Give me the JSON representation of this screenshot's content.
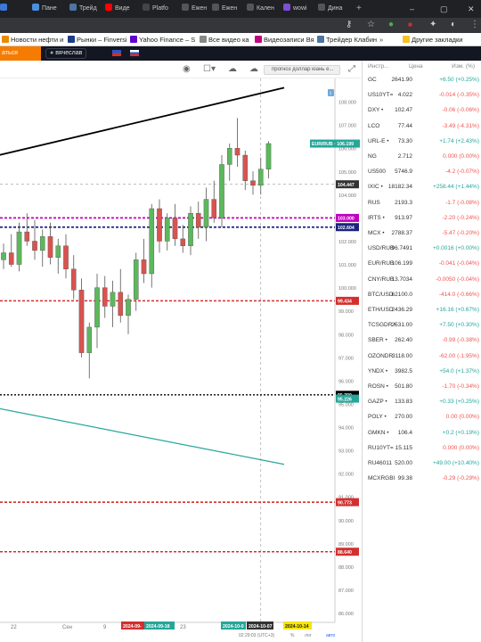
{
  "browser": {
    "tabs": [
      {
        "label": "Пане",
        "color": "#4a90e2"
      },
      {
        "label": "Трейд",
        "color": "#4c75a3"
      },
      {
        "label": "Виде",
        "color": "#ff0000"
      },
      {
        "label": "Platfo",
        "color": "#444444"
      },
      {
        "label": "Ежен",
        "color": "#555555"
      },
      {
        "label": "Ежен",
        "color": "#555555"
      },
      {
        "label": "Кален",
        "color": "#555555"
      },
      {
        "label": "wowi",
        "color": "#7b4fd6"
      },
      {
        "label": "Дина",
        "color": "#555555"
      }
    ],
    "bookmarks": [
      {
        "label": "Новости нефти и",
        "color": "#e88b00"
      },
      {
        "label": "Рынки – Finversi",
        "color": "#1f3c88"
      },
      {
        "label": "Yahoo Finance – S",
        "color": "#6001d2"
      },
      {
        "label": "Все видео ка",
        "color": "#888888"
      },
      {
        "label": "Видеозаписи Вя",
        "color": "#c00080"
      },
      {
        "label": "Трейдер Клабин",
        "color": "#4c75a3"
      }
    ],
    "other_bookmarks": "Другие закладки"
  },
  "app": {
    "orange_label": "аться",
    "user": "вячеслав"
  },
  "toolbar": {
    "compare_placeholder": "прогноз доллар юань е..."
  },
  "chart": {
    "price_labels": [
      "108.000",
      "107.000",
      "106.000",
      "105.000",
      "104.000",
      "103.000",
      "102.000",
      "101.000",
      "100.000",
      "99.000",
      "98.000",
      "97.000",
      "96.000",
      "95.000",
      "94.000",
      "93.000",
      "92.000",
      "91.000",
      "90.000",
      "89.000",
      "88.000",
      "87.000",
      "86.000"
    ],
    "level_tags": [
      {
        "text": "EUR/RUB · 106.199",
        "price": 106.199,
        "color": "#26a69a"
      },
      {
        "text": "104.447",
        "price": 104.447,
        "color": "#333333"
      },
      {
        "text": "103.000",
        "price": 103.0,
        "color": "#c000c0"
      },
      {
        "text": "102.604",
        "price": 102.604,
        "color": "#1a237e"
      },
      {
        "text": "99.434",
        "price": 99.434,
        "color": "#d32f2f"
      },
      {
        "text": "95.390",
        "price": 95.39,
        "color": "#000000"
      },
      {
        "text": "95.226",
        "price": 95.226,
        "color": "#26a69a"
      },
      {
        "text": "90.773",
        "price": 90.773,
        "color": "#d32f2f"
      },
      {
        "text": "88.640",
        "price": 88.64,
        "color": "#d32f2f"
      }
    ],
    "x_labels": [
      "22",
      "Сен",
      "9",
      "23"
    ],
    "date_tags": [
      {
        "text": "2024-09-",
        "color": "#d32f2f"
      },
      {
        "text": "2024-09-18",
        "color": "#26a69a"
      },
      {
        "text": "2024-10-0",
        "color": "#26a69a"
      },
      {
        "text": "2024-10-07",
        "color": "#333333"
      },
      {
        "text": "2024-10-14",
        "color": "#f5e600"
      }
    ],
    "status_time": "02:29:03 (UTC+3)",
    "status_pct": "%",
    "status_log": "лог",
    "status_auto": "авто"
  },
  "watchlist": {
    "headers": {
      "symbol": "Инстр...",
      "price": "Цена",
      "change": "Изм. (%)"
    },
    "rows": [
      {
        "sym": "GC",
        "price": "2641.90",
        "chg": "+6.50 (+0.25%)",
        "dir": "up"
      },
      {
        "sym": "US10YT=",
        "price": "4.022",
        "chg": "-0.014 (-0.35%)",
        "dir": "down"
      },
      {
        "sym": "DXY •",
        "price": "102.47",
        "chg": "-0.06 (-0.06%)",
        "dir": "down"
      },
      {
        "sym": "LCO",
        "price": "77.44",
        "chg": "-3.49 (-4.31%)",
        "dir": "down"
      },
      {
        "sym": "URL-E •",
        "price": "73.30",
        "chg": "+1.74 (+2.43%)",
        "dir": "up"
      },
      {
        "sym": "NG",
        "price": "2.712",
        "chg": "0.000 (0.00%)",
        "dir": "flat"
      },
      {
        "sym": "US500",
        "price": "5746.9",
        "chg": "-4.2 (-0.07%)",
        "dir": "down"
      },
      {
        "sym": "IXIC •",
        "price": "18182.34",
        "chg": "+258.44 (+1.44%)",
        "dir": "up"
      },
      {
        "sym": "RUS",
        "price": "2193.3",
        "chg": "-1.7 (-0.08%)",
        "dir": "down"
      },
      {
        "sym": "IRTS •",
        "price": "913.97",
        "chg": "-2.20 (-0.24%)",
        "dir": "down"
      },
      {
        "sym": "MCX •",
        "price": "2788.37",
        "chg": "-5.47 (-0.20%)",
        "dir": "down"
      },
      {
        "sym": "USD/RUB",
        "price": "96.7491",
        "chg": "+0.0016 (+0.00%)",
        "dir": "up"
      },
      {
        "sym": "EUR/RUB",
        "price": "106.199",
        "chg": "-0.041 (-0.04%)",
        "dir": "down"
      },
      {
        "sym": "CNY/RUB",
        "price": "13.7034",
        "chg": "-0.0050 (-0.04%)",
        "dir": "down"
      },
      {
        "sym": "BTC/USD",
        "price": "62100.0",
        "chg": "-414.0 (-0.66%)",
        "dir": "down"
      },
      {
        "sym": "ETH/USD",
        "price": "2436.29",
        "chg": "+16.16 (+0.67%)",
        "dir": "up"
      },
      {
        "sym": "TCSGDR •",
        "price": "2531.00",
        "chg": "+7.50 (+0.30%)",
        "dir": "up"
      },
      {
        "sym": "SBER •",
        "price": "262.40",
        "chg": "-0.99 (-0.38%)",
        "dir": "down"
      },
      {
        "sym": "OZONDR",
        "price": "3118.00",
        "chg": "-62.00 (-1.95%)",
        "dir": "down"
      },
      {
        "sym": "YNDX •",
        "price": "3982.5",
        "chg": "+54.0 (+1.37%)",
        "dir": "up"
      },
      {
        "sym": "ROSN •",
        "price": "501.80",
        "chg": "-1.70 (-0.34%)",
        "dir": "down"
      },
      {
        "sym": "GAZP •",
        "price": "133.83",
        "chg": "+0.33 (+0.25%)",
        "dir": "up"
      },
      {
        "sym": "POLY •",
        "price": "270.00",
        "chg": "0.00 (0.00%)",
        "dir": "flat"
      },
      {
        "sym": "GMKN •",
        "price": "106.4",
        "chg": "+0.2 (+0.19%)",
        "dir": "up"
      },
      {
        "sym": "RU10YT=",
        "price": "15.115",
        "chg": "0.000 (0.00%)",
        "dir": "flat"
      },
      {
        "sym": "RU46011",
        "price": "520.00",
        "chg": "+49.00 (+10.40%)",
        "dir": "up"
      },
      {
        "sym": "MCXRGBI",
        "price": "99.38",
        "chg": "-0.29 (-0.29%)",
        "dir": "down"
      }
    ]
  },
  "chart_data": {
    "type": "candlestick",
    "series_name": "EUR/RUB",
    "ylim": [
      85.6,
      109.0
    ],
    "x_ticks": [
      "22",
      "Сен",
      "9",
      "23"
    ],
    "candles": [
      [
        101.2,
        101.9,
        100.8,
        101.5
      ],
      [
        101.5,
        102.3,
        100.9,
        101.0
      ],
      [
        101.0,
        102.8,
        100.7,
        102.4
      ],
      [
        102.4,
        103.2,
        101.8,
        102.0
      ],
      [
        102.0,
        102.9,
        101.2,
        101.6
      ],
      [
        101.6,
        102.5,
        100.9,
        102.2
      ],
      [
        102.2,
        102.8,
        101.0,
        101.3
      ],
      [
        101.3,
        102.1,
        100.6,
        101.8
      ],
      [
        101.8,
        102.3,
        100.4,
        100.8
      ],
      [
        100.8,
        101.4,
        99.5,
        99.9
      ],
      [
        99.9,
        100.4,
        97.0,
        97.2
      ],
      [
        97.2,
        98.5,
        96.1,
        98.3
      ],
      [
        98.3,
        100.6,
        97.4,
        100.0
      ],
      [
        100.0,
        100.5,
        98.7,
        99.2
      ],
      [
        99.2,
        100.3,
        98.3,
        99.8
      ],
      [
        99.8,
        100.8,
        98.5,
        98.8
      ],
      [
        98.8,
        99.7,
        98.0,
        99.5
      ],
      [
        99.5,
        101.5,
        99.0,
        101.2
      ],
      [
        101.2,
        102.1,
        100.2,
        100.6
      ],
      [
        100.6,
        103.6,
        100.0,
        103.4
      ],
      [
        103.4,
        103.8,
        101.5,
        102.0
      ],
      [
        102.0,
        103.2,
        101.6,
        103.0
      ],
      [
        103.0,
        103.6,
        101.8,
        102.1
      ],
      [
        102.1,
        102.7,
        101.5,
        101.8
      ],
      [
        101.8,
        103.5,
        101.4,
        103.2
      ],
      [
        103.2,
        103.7,
        102.1,
        102.6
      ],
      [
        102.6,
        104.3,
        102.0,
        103.8
      ],
      [
        103.8,
        104.6,
        102.8,
        103.0
      ],
      [
        103.0,
        105.7,
        102.6,
        105.3
      ],
      [
        105.3,
        106.2,
        104.6,
        106.0
      ],
      [
        106.0,
        107.3,
        105.2,
        105.7
      ],
      [
        105.7,
        105.9,
        104.2,
        104.6
      ],
      [
        104.6,
        105.0,
        104.0,
        104.4
      ],
      [
        104.4,
        105.6,
        104.0,
        105.1
      ],
      [
        105.1,
        106.3,
        104.7,
        106.2
      ]
    ],
    "trendlines": [
      {
        "from": [
          -0.6,
          105.7
        ],
        "to": [
          34.4,
          108.6
        ],
        "color": "#000000"
      },
      {
        "from": [
          -0.6,
          94.8
        ],
        "to": [
          34.4,
          92.4
        ],
        "color": "#26a69a"
      }
    ]
  }
}
